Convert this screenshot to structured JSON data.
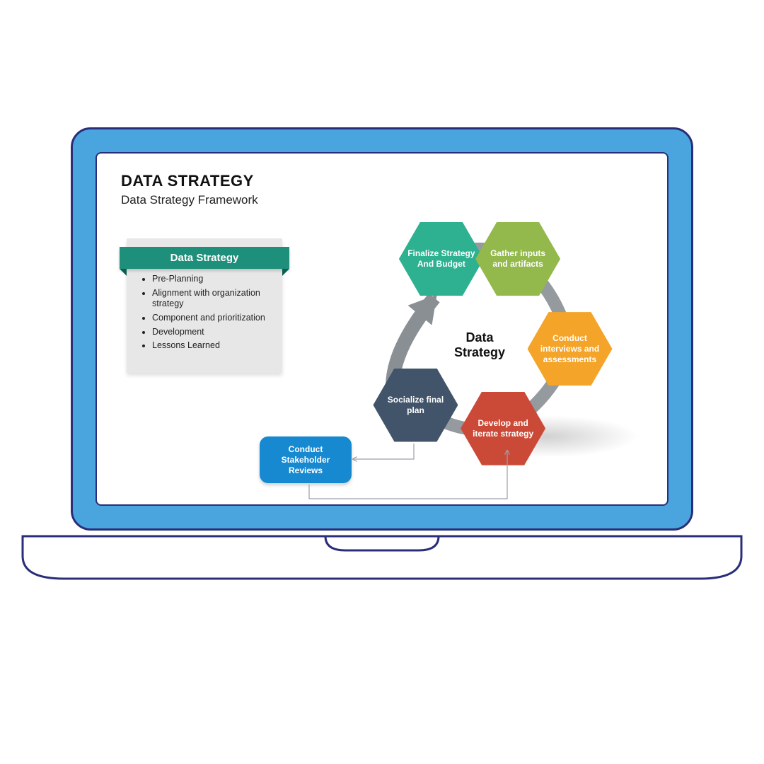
{
  "colors": {
    "laptop_fill": "#4aa5df",
    "laptop_stroke": "#2a2e7a",
    "screen_bg": "#ffffff",
    "card_bg": "#e7e7e7",
    "card_header_bg": "#1d8f7a",
    "card_header_fold": "#0d5e50",
    "text_dark": "#111111",
    "arrow_gray": "#8a8f94",
    "stakeholder_bg": "#1789d1"
  },
  "header": {
    "title": "DATA STRATEGY",
    "subtitle": "Data Strategy Framework"
  },
  "card": {
    "title": "Data Strategy",
    "bullets": [
      "Pre-Planning",
      "Alignment with organization strategy",
      "Component and prioritization",
      "Development",
      "Lessons Learned"
    ]
  },
  "cycle": {
    "center_label_top": "Data",
    "center_label_bottom": "Strategy",
    "radius": 128,
    "hex_size": {
      "w": 120,
      "h": 104
    },
    "arrow_color": "#8a8f94",
    "nodes": [
      {
        "id": "finalize",
        "label": "Finalize Strategy And Budget",
        "color": "#2db190",
        "angle_deg": -115
      },
      {
        "id": "gather",
        "label": "Gather inputs and artifacts",
        "color": "#93b94c",
        "angle_deg": -65
      },
      {
        "id": "conduct",
        "label": "Conduct interviews and assessments",
        "color": "#f4a428",
        "angle_deg": 5
      },
      {
        "id": "develop",
        "label": "Develop and iterate strategy",
        "color": "#cb4a37",
        "angle_deg": 75
      },
      {
        "id": "socialize",
        "label": "Socialize final plan",
        "color": "#41546a",
        "angle_deg": 135
      }
    ]
  },
  "stakeholder": {
    "label": "Conduct Stakeholder Reviews",
    "bg": "#1789d1"
  }
}
